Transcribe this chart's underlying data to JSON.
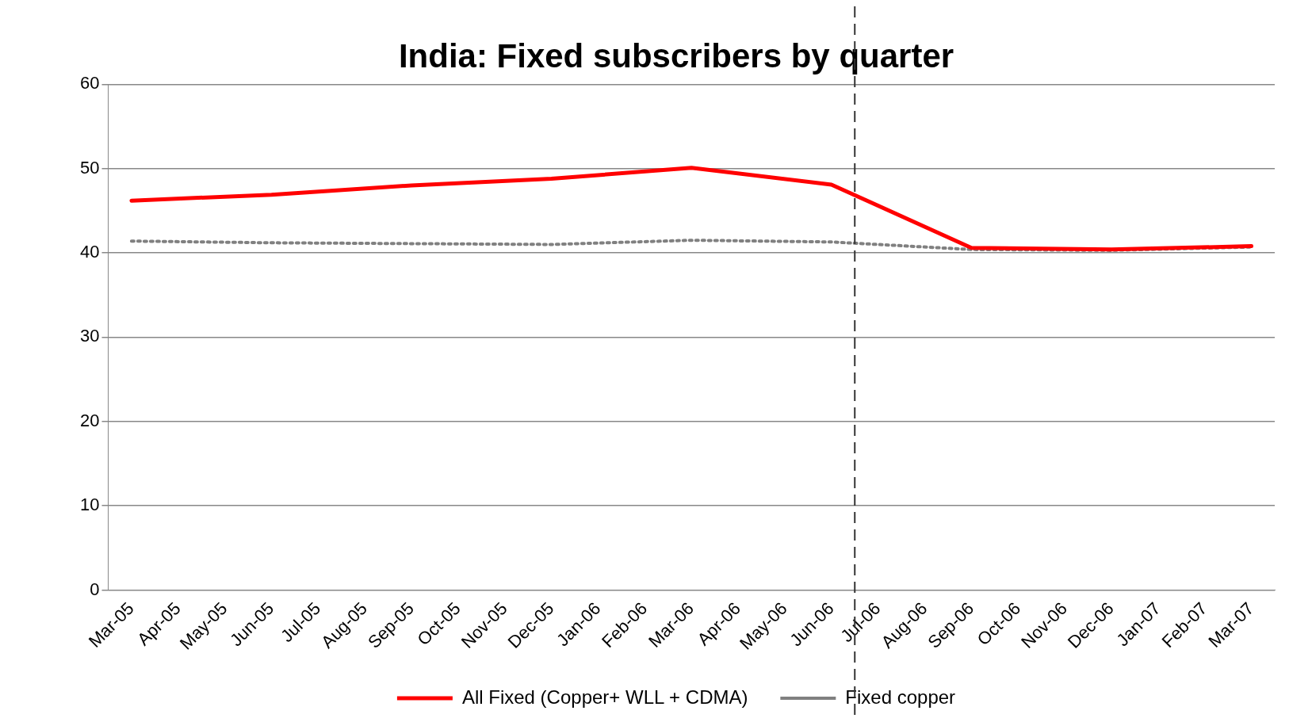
{
  "chart_data": {
    "type": "line",
    "title": "India: Fixed subscribers by quarter",
    "categories": [
      "Mar-05",
      "Apr-05",
      "May-05",
      "Jun-05",
      "Jul-05",
      "Aug-05",
      "Sep-05",
      "Oct-05",
      "Nov-05",
      "Dec-05",
      "Jan-06",
      "Feb-06",
      "Mar-06",
      "Apr-06",
      "May-06",
      "Jun-06",
      "Jul-06",
      "Aug-06",
      "Sep-06",
      "Oct-06",
      "Nov-06",
      "Dec-06",
      "Jan-07",
      "Feb-07",
      "Mar-07"
    ],
    "series": [
      {
        "name": "All Fixed (Copper+ WLL + CDMA)",
        "color": "#ff0000",
        "line_style": "solid",
        "values": [
          46.2,
          null,
          null,
          46.9,
          null,
          null,
          48.0,
          null,
          null,
          48.8,
          null,
          null,
          50.1,
          null,
          null,
          48.1,
          null,
          null,
          40.6,
          null,
          null,
          40.4,
          null,
          null,
          40.8
        ]
      },
      {
        "name": "Fixed copper",
        "color": "#808080",
        "line_style": "dotted",
        "values": [
          41.4,
          null,
          null,
          41.2,
          null,
          null,
          41.1,
          null,
          null,
          41.0,
          null,
          null,
          41.5,
          null,
          null,
          41.3,
          null,
          null,
          40.4,
          null,
          null,
          40.3,
          null,
          null,
          40.7
        ]
      }
    ],
    "ylim": [
      0,
      60
    ],
    "yticks": [
      0,
      10,
      20,
      30,
      40,
      50,
      60
    ],
    "grid": "y",
    "legend": "bottom",
    "marker": "none",
    "ref_lines": [
      {
        "axis": "x",
        "value": "Jul-06",
        "color": "#333333",
        "line_style": "dashed"
      }
    ]
  }
}
